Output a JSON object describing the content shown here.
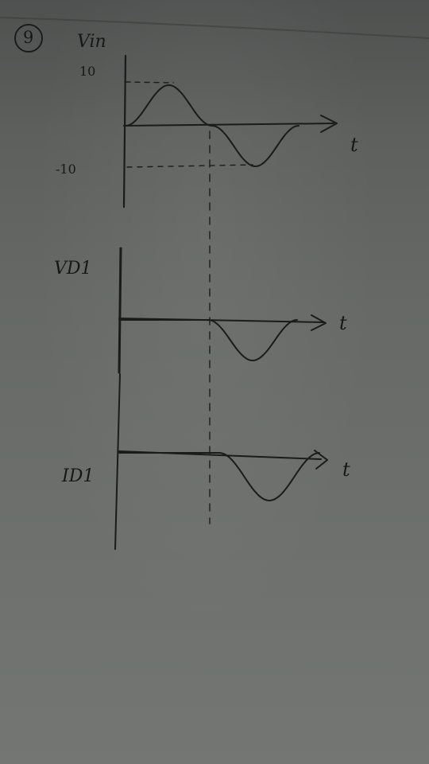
{
  "problem_number": "9",
  "graphs": {
    "input": {
      "ylabel": "Vin",
      "ymax_label": "10",
      "ymin_label": "-10",
      "xlabel": "t"
    },
    "diode_voltage": {
      "ylabel": "VD1",
      "xlabel": "t"
    },
    "diode_current": {
      "ylabel": "ID1",
      "xlabel": "t"
    }
  },
  "chart_data": [
    {
      "type": "line",
      "title": "",
      "xlabel": "t",
      "ylabel": "Vin",
      "ylim": [
        -10,
        10
      ],
      "series": [
        {
          "x": [
            0,
            0.25,
            0.5,
            0.75,
            1.0
          ],
          "y": [
            0,
            10,
            0,
            -10,
            0
          ]
        }
      ]
    },
    {
      "type": "line",
      "title": "",
      "xlabel": "t",
      "ylabel": "VD1",
      "series": [
        {
          "x": [
            0,
            0.25,
            0.5,
            0.75,
            1.0
          ],
          "y": [
            0,
            0,
            0,
            -10,
            0
          ]
        }
      ]
    },
    {
      "type": "line",
      "title": "",
      "xlabel": "t",
      "ylabel": "ID1",
      "series": [
        {
          "x": [
            0,
            0.25,
            0.5,
            0.75,
            1.0
          ],
          "y": [
            0,
            0,
            0,
            -1,
            0
          ]
        }
      ]
    }
  ]
}
